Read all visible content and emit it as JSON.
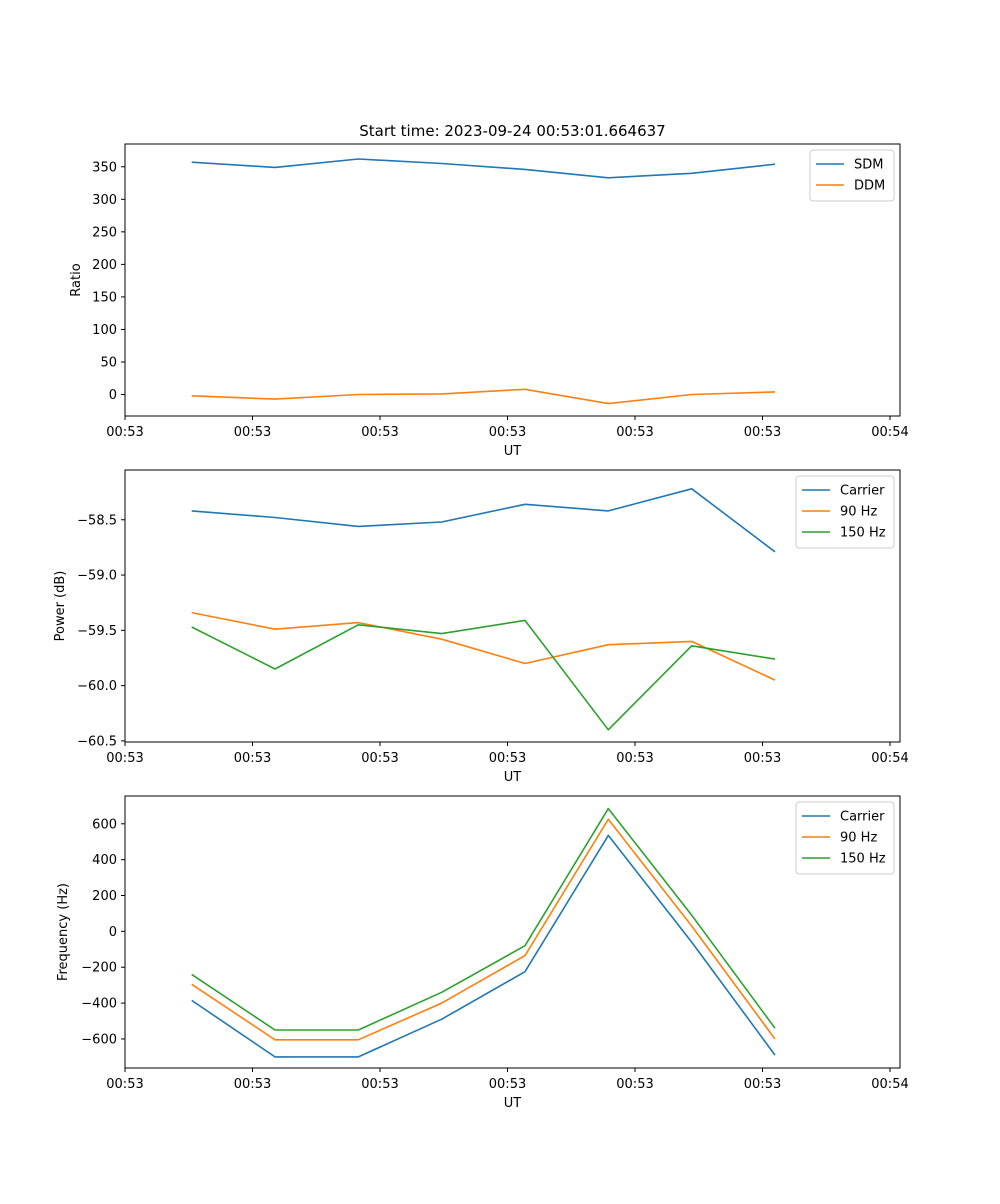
{
  "title": "Start time: 2023-09-24 00:53:01.664637",
  "colors": {
    "blue": "#1f77b4",
    "orange": "#ff7f0e",
    "green": "#2ca02c"
  },
  "chart_data": [
    {
      "type": "line",
      "xlabel": "UT",
      "ylabel": "Ratio",
      "x": [
        1,
        2,
        3,
        4,
        5,
        6,
        7,
        8
      ],
      "xlim": [
        0.2,
        9.5
      ],
      "ylim": [
        -33,
        385
      ],
      "x_ticks": [
        0.2,
        1.73,
        3.26,
        4.79,
        6.32,
        7.85,
        9.38
      ],
      "x_tick_labels": [
        "00:53",
        "00:53",
        "00:53",
        "00:53",
        "00:53",
        "00:53",
        "00:54"
      ],
      "y_ticks": [
        0,
        50,
        100,
        150,
        200,
        250,
        300,
        350
      ],
      "y_tick_labels": [
        "0",
        "50",
        "100",
        "150",
        "200",
        "250",
        "300",
        "350"
      ],
      "legend_position": "top-right",
      "series": [
        {
          "name": "SDM",
          "color": "#1f77b4",
          "values": [
            357,
            349,
            362,
            355,
            346,
            333,
            340,
            354
          ]
        },
        {
          "name": "DDM",
          "color": "#ff7f0e",
          "values": [
            -2,
            -7,
            0,
            1,
            8,
            -14,
            0,
            4
          ]
        }
      ]
    },
    {
      "type": "line",
      "xlabel": "UT",
      "ylabel": "Power (dB)",
      "x": [
        1,
        2,
        3,
        4,
        5,
        6,
        7,
        8
      ],
      "xlim": [
        0.2,
        9.5
      ],
      "ylim": [
        -60.51,
        -58.05
      ],
      "x_ticks": [
        0.2,
        1.73,
        3.26,
        4.79,
        6.32,
        7.85,
        9.38
      ],
      "x_tick_labels": [
        "00:53",
        "00:53",
        "00:53",
        "00:53",
        "00:53",
        "00:53",
        "00:54"
      ],
      "y_ticks": [
        -60.5,
        -60.0,
        -59.5,
        -59.0,
        -58.5
      ],
      "y_tick_labels": [
        "−60.5",
        "−60.0",
        "−59.5",
        "−59.0",
        "−58.5"
      ],
      "legend_position": "top-right",
      "series": [
        {
          "name": "Carrier",
          "color": "#1f77b4",
          "values": [
            -58.42,
            -58.48,
            -58.56,
            -58.52,
            -58.36,
            -58.42,
            -58.22,
            -58.79
          ]
        },
        {
          "name": "90 Hz",
          "color": "#ff7f0e",
          "values": [
            -59.34,
            -59.49,
            -59.43,
            -59.58,
            -59.8,
            -59.63,
            -59.6,
            -59.95
          ]
        },
        {
          "name": "150 Hz",
          "color": "#2ca02c",
          "values": [
            -59.47,
            -59.85,
            -59.45,
            -59.53,
            -59.41,
            -60.4,
            -59.64,
            -59.76
          ]
        }
      ]
    },
    {
      "type": "line",
      "xlabel": "UT",
      "ylabel": "Frequency (Hz)",
      "x": [
        1,
        2,
        3,
        4,
        5,
        6,
        7,
        8
      ],
      "xlim": [
        0.2,
        9.5
      ],
      "ylim": [
        -762,
        755
      ],
      "x_ticks": [
        0.2,
        1.73,
        3.26,
        4.79,
        6.32,
        7.85,
        9.38
      ],
      "x_tick_labels": [
        "00:53",
        "00:53",
        "00:53",
        "00:53",
        "00:53",
        "00:53",
        "00:54"
      ],
      "y_ticks": [
        -600,
        -400,
        -200,
        0,
        200,
        400,
        600
      ],
      "y_tick_labels": [
        "−600",
        "−400",
        "−200",
        "0",
        "200",
        "400",
        "600"
      ],
      "legend_position": "top-right",
      "series": [
        {
          "name": "Carrier",
          "color": "#1f77b4",
          "values": [
            -385,
            -700,
            -700,
            -490,
            -225,
            535,
            -60,
            -690
          ]
        },
        {
          "name": "90 Hz",
          "color": "#ff7f0e",
          "values": [
            -295,
            -605,
            -605,
            -400,
            -135,
            625,
            30,
            -600
          ]
        },
        {
          "name": "150 Hz",
          "color": "#2ca02c",
          "values": [
            -240,
            -550,
            -550,
            -340,
            -80,
            685,
            90,
            -540
          ]
        }
      ]
    }
  ]
}
